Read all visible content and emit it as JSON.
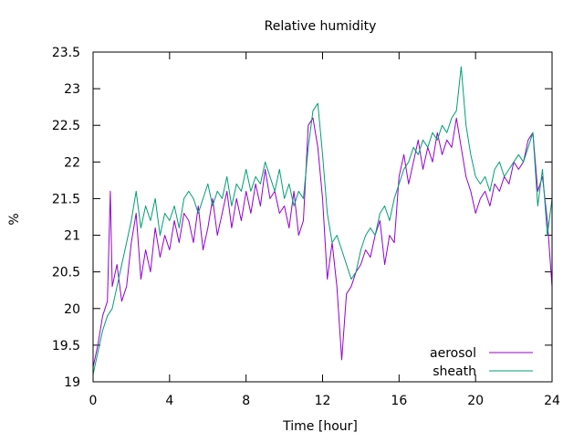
{
  "chart_data": {
    "type": "line",
    "title": "Relative humidity",
    "xlabel": "Time [hour]",
    "ylabel": "%",
    "xlim": [
      0,
      24
    ],
    "ylim": [
      19,
      23.5
    ],
    "xticks": [
      0,
      4,
      8,
      12,
      16,
      20,
      24
    ],
    "yticks": [
      19,
      19.5,
      20,
      20.5,
      21,
      21.5,
      22,
      22.5,
      23,
      23.5
    ],
    "xtick_labels": [
      "0",
      "4",
      "8",
      "12",
      "16",
      "20",
      "24"
    ],
    "ytick_labels": [
      "19",
      "19.5",
      "20",
      "20.5",
      "21",
      "21.5",
      "22",
      "22.5",
      "23",
      "23.5"
    ],
    "grid": false,
    "legend": "bottom-right",
    "series": [
      {
        "name": "aerosol",
        "color": "#9400d3",
        "x": [
          0,
          0.25,
          0.5,
          0.75,
          0.9,
          1.0,
          1.25,
          1.5,
          1.75,
          2.0,
          2.25,
          2.5,
          2.75,
          3.0,
          3.25,
          3.5,
          3.75,
          4.0,
          4.25,
          4.5,
          4.75,
          5.0,
          5.25,
          5.5,
          5.75,
          6.0,
          6.25,
          6.5,
          6.75,
          7.0,
          7.25,
          7.5,
          7.75,
          8.0,
          8.25,
          8.5,
          8.75,
          9.0,
          9.25,
          9.5,
          9.75,
          10.0,
          10.25,
          10.5,
          10.75,
          11.0,
          11.25,
          11.5,
          11.75,
          12.0,
          12.25,
          12.5,
          12.75,
          13.0,
          13.25,
          13.5,
          13.75,
          14.0,
          14.25,
          14.5,
          14.75,
          15.0,
          15.25,
          15.5,
          15.75,
          16.0,
          16.25,
          16.5,
          16.75,
          17.0,
          17.25,
          17.5,
          17.75,
          18.0,
          18.25,
          18.5,
          18.75,
          19.0,
          19.25,
          19.5,
          19.75,
          20.0,
          20.25,
          20.5,
          20.75,
          21.0,
          21.25,
          21.5,
          21.75,
          22.0,
          22.25,
          22.5,
          22.75,
          23.0,
          23.25,
          23.5,
          23.75,
          24.0
        ],
        "values": [
          19.2,
          19.5,
          19.9,
          20.1,
          21.6,
          20.3,
          20.6,
          20.1,
          20.3,
          20.9,
          21.3,
          20.4,
          20.8,
          20.5,
          21.1,
          20.7,
          21.0,
          20.8,
          21.2,
          20.9,
          21.3,
          21.2,
          20.9,
          21.4,
          20.8,
          21.1,
          21.5,
          21.0,
          21.3,
          21.6,
          21.1,
          21.5,
          21.2,
          21.6,
          21.3,
          21.7,
          21.4,
          21.9,
          21.5,
          21.6,
          21.3,
          21.4,
          21.1,
          21.6,
          21.0,
          21.2,
          22.5,
          22.6,
          22.2,
          21.5,
          20.4,
          20.9,
          20.3,
          19.3,
          20.2,
          20.3,
          20.5,
          20.6,
          20.8,
          20.7,
          21.0,
          21.2,
          20.6,
          21.0,
          20.9,
          21.8,
          22.1,
          21.7,
          22.0,
          22.3,
          21.9,
          22.2,
          22.0,
          22.4,
          22.1,
          22.3,
          22.2,
          22.6,
          22.2,
          21.8,
          21.6,
          21.3,
          21.5,
          21.6,
          21.4,
          21.7,
          21.6,
          21.8,
          21.7,
          22.0,
          21.9,
          22.0,
          22.3,
          22.4,
          21.6,
          21.8,
          21.2,
          20.3
        ]
      },
      {
        "name": "sheath",
        "color": "#009e73",
        "x": [
          0,
          0.25,
          0.5,
          0.75,
          1.0,
          1.25,
          1.5,
          1.75,
          2.0,
          2.25,
          2.5,
          2.75,
          3.0,
          3.25,
          3.5,
          3.75,
          4.0,
          4.25,
          4.5,
          4.75,
          5.0,
          5.25,
          5.5,
          5.75,
          6.0,
          6.25,
          6.5,
          6.75,
          7.0,
          7.25,
          7.5,
          7.75,
          8.0,
          8.25,
          8.5,
          8.75,
          9.0,
          9.25,
          9.5,
          9.75,
          10.0,
          10.25,
          10.5,
          10.75,
          11.0,
          11.25,
          11.5,
          11.75,
          12.0,
          12.25,
          12.5,
          12.75,
          13.0,
          13.25,
          13.5,
          13.75,
          14.0,
          14.25,
          14.5,
          14.75,
          15.0,
          15.25,
          15.5,
          15.75,
          16.0,
          16.25,
          16.5,
          16.75,
          17.0,
          17.25,
          17.5,
          17.75,
          18.0,
          18.25,
          18.5,
          18.75,
          19.0,
          19.25,
          19.5,
          19.75,
          20.0,
          20.25,
          20.5,
          20.75,
          21.0,
          21.25,
          21.5,
          21.75,
          22.0,
          22.25,
          22.5,
          22.75,
          23.0,
          23.25,
          23.5,
          23.75,
          24.0
        ],
        "values": [
          19.1,
          19.4,
          19.7,
          19.9,
          20.0,
          20.3,
          20.6,
          20.9,
          21.2,
          21.6,
          21.1,
          21.4,
          21.2,
          21.5,
          21.0,
          21.3,
          21.2,
          21.4,
          21.1,
          21.5,
          21.6,
          21.5,
          21.3,
          21.5,
          21.7,
          21.4,
          21.6,
          21.5,
          21.8,
          21.4,
          21.7,
          21.6,
          21.9,
          21.6,
          21.8,
          21.7,
          22.0,
          21.8,
          21.6,
          21.9,
          21.5,
          21.7,
          21.4,
          21.6,
          21.5,
          22.2,
          22.7,
          22.8,
          22.1,
          21.3,
          20.9,
          21.0,
          20.8,
          20.6,
          20.4,
          20.5,
          20.8,
          21.0,
          21.1,
          21.0,
          21.3,
          21.4,
          21.2,
          21.5,
          21.7,
          21.9,
          22.0,
          22.2,
          22.1,
          22.3,
          22.2,
          22.4,
          22.3,
          22.5,
          22.4,
          22.6,
          22.7,
          23.3,
          22.5,
          22.1,
          21.8,
          21.7,
          21.8,
          21.6,
          21.9,
          22.0,
          21.8,
          21.9,
          22.0,
          22.1,
          22.0,
          22.2,
          22.4,
          21.4,
          21.9,
          21.0,
          21.5
        ]
      }
    ]
  }
}
